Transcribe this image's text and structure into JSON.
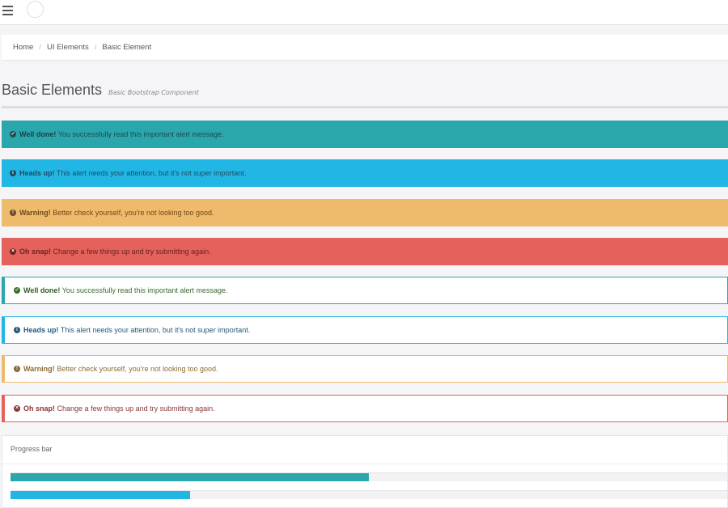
{
  "colors": {
    "success": "#2aa7ad",
    "info": "#22b6e5",
    "warning": "#eeba6b",
    "danger": "#e4625b"
  },
  "topbar": {
    "menu_icon": "hamburger-icon",
    "avatar": "avatar-circle"
  },
  "breadcrumb": {
    "items": [
      "Home",
      "UI Elements",
      "Basic Element"
    ],
    "separator": "/"
  },
  "page": {
    "title": "Basic Elements",
    "subtitle": "Basic Bootstrap Component"
  },
  "alerts": {
    "solid": [
      {
        "type": "success",
        "icon": "check-circle-icon",
        "strong": "Well done!",
        "text": "You successfully read this important alert message."
      },
      {
        "type": "info",
        "icon": "info-circle-icon",
        "strong": "Heads up!",
        "text": "This alert needs your attention, but it's not super important."
      },
      {
        "type": "warning",
        "icon": "exclamation-circle-icon",
        "strong": "Warning!",
        "text": "Better check yourself, you're not looking too good."
      },
      {
        "type": "danger",
        "icon": "times-circle-icon",
        "strong": "Oh snap!",
        "text": "Change a few things up and try submitting again."
      }
    ],
    "outline": [
      {
        "type": "success",
        "icon": "check-circle-icon",
        "strong": "Well done!",
        "text": "You successfully read this important alert message."
      },
      {
        "type": "info",
        "icon": "info-circle-icon",
        "strong": "Heads up!",
        "text": "This alert needs your attention, but it's not super important."
      },
      {
        "type": "warning",
        "icon": "exclamation-circle-icon",
        "strong": "Warning!",
        "text": "Better check yourself, you're not looking too good."
      },
      {
        "type": "danger",
        "icon": "times-circle-icon",
        "strong": "Oh snap!",
        "text": "Change a few things up and try submitting again."
      }
    ]
  },
  "progress_panel": {
    "title": "Progress bar",
    "bars": [
      {
        "type": "success",
        "percent": 50
      },
      {
        "type": "info",
        "percent": 25
      }
    ]
  }
}
